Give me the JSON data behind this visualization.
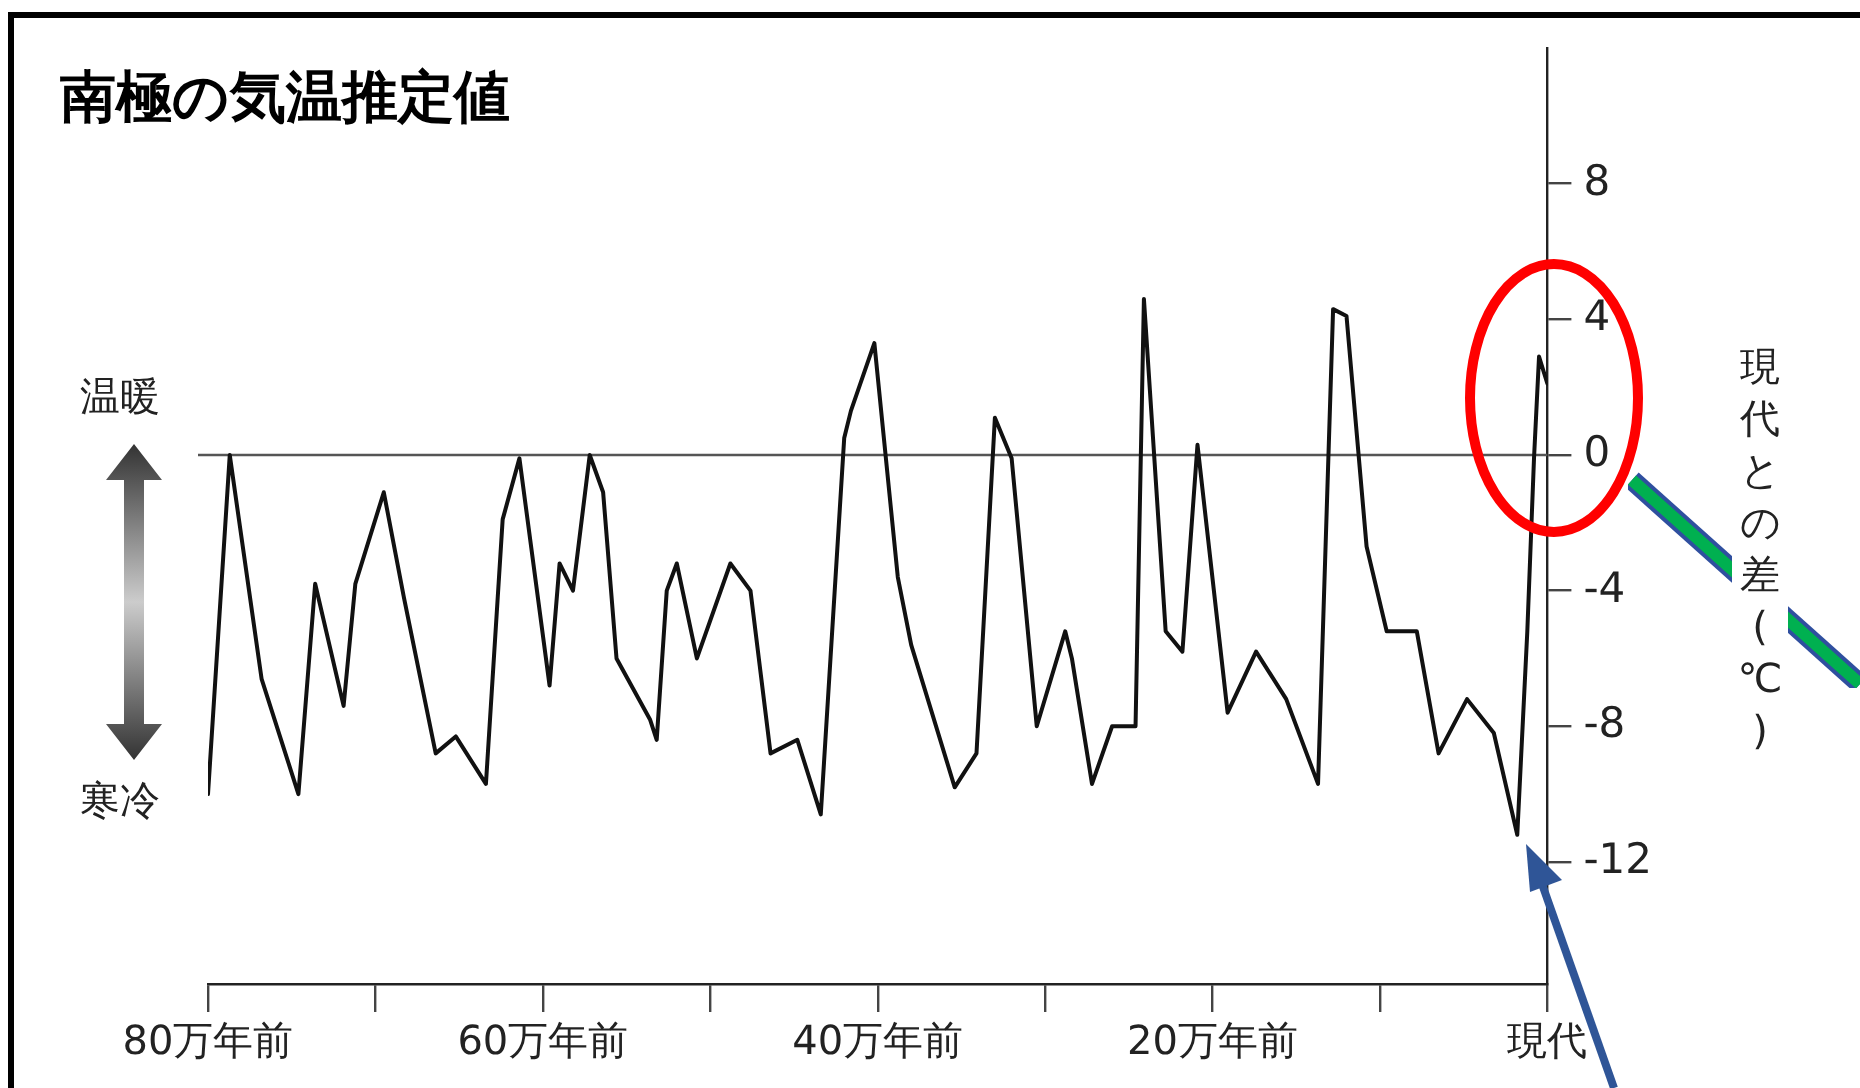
{
  "chart_data": {
    "type": "line",
    "title": "南極の気温推定値",
    "ylabel": "現代との差(℃)",
    "annotations": [
      "温暖",
      "寒冷"
    ],
    "x": [
      80,
      78.7,
      76.8,
      74.6,
      73.6,
      71.9,
      71.2,
      69.5,
      68.3,
      66.4,
      65.2,
      63.4,
      62.4,
      61.4,
      59.6,
      59.0,
      58.2,
      57.2,
      56.4,
      55.6,
      53.6,
      53.2,
      52.6,
      52.0,
      50.8,
      48.8,
      47.6,
      46.4,
      44.8,
      43.4,
      42.0,
      41.6,
      40.2,
      38.8,
      38.0,
      35.4,
      34.1,
      33.0,
      32.0,
      30.5,
      28.8,
      28.4,
      27.2,
      26.0,
      24.6,
      24.1,
      22.8,
      21.8,
      20.9,
      19.1,
      17.4,
      15.6,
      13.7,
      12.8,
      12.0,
      10.8,
      9.6,
      7.8,
      6.5,
      4.8,
      3.2,
      1.8,
      1.2,
      0.8,
      0.5,
      0
    ],
    "series": [
      {
        "color": "#111111",
        "values": [
          -10.0,
          0,
          -6.6,
          -10.0,
          -3.8,
          -7.4,
          -3.8,
          -1.1,
          -4.2,
          -8.8,
          -8.3,
          -9.7,
          -1.9,
          -0.1,
          -6.8,
          -3.2,
          -4.0,
          0,
          -1.1,
          -6.0,
          -7.8,
          -8.4,
          -4.0,
          -3.2,
          -6.0,
          -3.2,
          -4.0,
          -8.8,
          -8.4,
          -10.6,
          0.5,
          1.3,
          3.3,
          -3.6,
          -5.6,
          -9.8,
          -8.8,
          1.1,
          -0.1,
          -8.0,
          -5.2,
          -6.0,
          -9.7,
          -8.0,
          -8.0,
          4.6,
          -5.2,
          -5.8,
          0.3,
          -7.6,
          -5.8,
          -7.2,
          -9.7,
          4.3,
          4.1,
          -2.7,
          -5.2,
          -5.2,
          -8.8,
          -7.2,
          -8.2,
          -11.2,
          -5.2,
          -0.1,
          2.9,
          2.1
        ]
      }
    ],
    "xlim": [
      80,
      0
    ],
    "xticks": [
      {
        "value": 80,
        "label": "80万年前"
      },
      {
        "value": 70,
        "label": null
      },
      {
        "value": 60,
        "label": "60万年前"
      },
      {
        "value": 50,
        "label": null
      },
      {
        "value": 40,
        "label": "40万年前"
      },
      {
        "value": 30,
        "label": null
      },
      {
        "value": 20,
        "label": "20万年前"
      },
      {
        "value": 10,
        "label": null
      },
      {
        "value": 0,
        "label": "現代"
      }
    ],
    "ylim": [
      -15.6,
      12
    ],
    "yticks": [
      8,
      4,
      0,
      -4,
      -8,
      -12
    ],
    "ref_lines": [
      {
        "axis": "y",
        "value": 0,
        "color": "#555555"
      }
    ],
    "grid": false,
    "legend": false,
    "marker": "none",
    "line_style": "solid"
  }
}
